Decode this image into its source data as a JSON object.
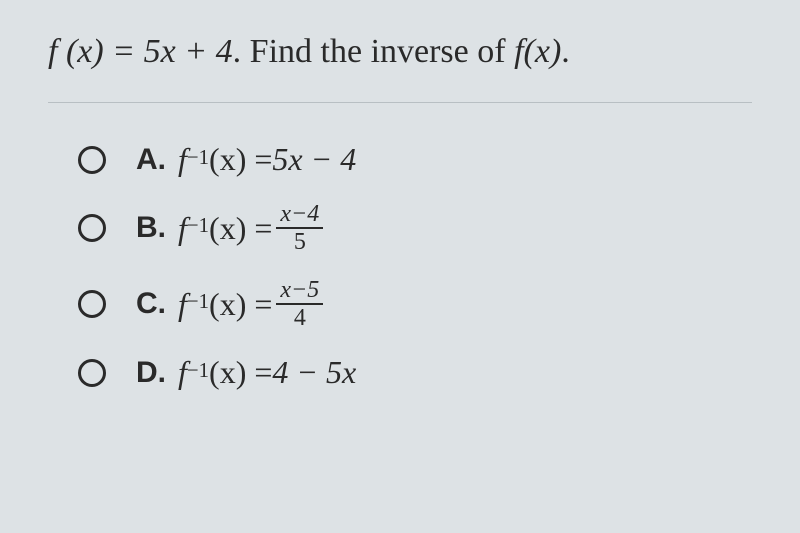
{
  "question": {
    "func_lhs": "f (x) = 5x + 4",
    "prompt_text": ". Find the inverse of ",
    "func_ref": "f(x)",
    "period": "."
  },
  "options": [
    {
      "letter": "A.",
      "lhs_f": "f",
      "lhs_sup": "−1",
      "lhs_paren": " (x) = ",
      "rhs_type": "plain",
      "rhs_plain": "5x − 4"
    },
    {
      "letter": "B.",
      "lhs_f": "f",
      "lhs_sup": "−1",
      "lhs_paren": " (x) = ",
      "rhs_type": "frac",
      "frac_num": "x−4",
      "frac_den": "5"
    },
    {
      "letter": "C.",
      "lhs_f": "f",
      "lhs_sup": "−1",
      "lhs_paren": " (x) = ",
      "rhs_type": "frac",
      "frac_num": "x−5",
      "frac_den": "4"
    },
    {
      "letter": "D.",
      "lhs_f": "f",
      "lhs_sup": "−1",
      "lhs_paren": " (x) = ",
      "rhs_type": "plain",
      "rhs_plain": "4 − 5x"
    }
  ],
  "colors": {
    "background": "#dde2e5",
    "text": "#2a2a2a",
    "divider": "#b8bfc3"
  },
  "typography": {
    "question_fontsize": 34,
    "option_letter_fontsize": 30,
    "option_math_fontsize": 32,
    "frac_fontsize": 24
  }
}
